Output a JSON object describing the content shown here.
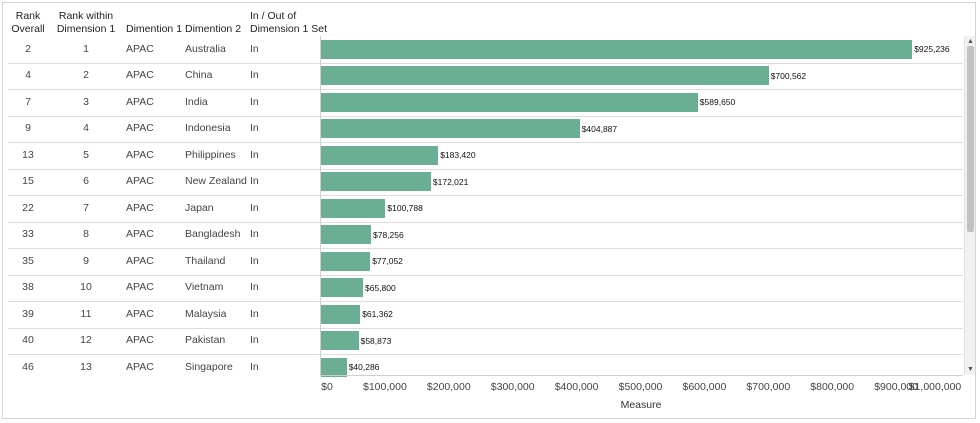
{
  "headers": {
    "rank_overall": [
      "Rank",
      "Overall"
    ],
    "rank_within": [
      "Rank within",
      "Dimension 1"
    ],
    "dimension1": "Dimention 1",
    "dimension2": "Dimention 2",
    "in_out": [
      "In / Out of",
      "Dimension 1 Set"
    ]
  },
  "rows": [
    {
      "rank_overall": "2",
      "rank_within": "1",
      "dim1": "APAC",
      "dim2": "Australia",
      "in_out": "In",
      "label": "$925,236"
    },
    {
      "rank_overall": "4",
      "rank_within": "2",
      "dim1": "APAC",
      "dim2": "China",
      "in_out": "In",
      "label": "$700,562"
    },
    {
      "rank_overall": "7",
      "rank_within": "3",
      "dim1": "APAC",
      "dim2": "India",
      "in_out": "In",
      "label": "$589,650"
    },
    {
      "rank_overall": "9",
      "rank_within": "4",
      "dim1": "APAC",
      "dim2": "Indonesia",
      "in_out": "In",
      "label": "$404,887"
    },
    {
      "rank_overall": "13",
      "rank_within": "5",
      "dim1": "APAC",
      "dim2": "Philippines",
      "in_out": "In",
      "label": "$183,420"
    },
    {
      "rank_overall": "15",
      "rank_within": "6",
      "dim1": "APAC",
      "dim2": "New Zealand",
      "in_out": "In",
      "label": "$172,021"
    },
    {
      "rank_overall": "22",
      "rank_within": "7",
      "dim1": "APAC",
      "dim2": "Japan",
      "in_out": "In",
      "label": "$100,788"
    },
    {
      "rank_overall": "33",
      "rank_within": "8",
      "dim1": "APAC",
      "dim2": "Bangladesh",
      "in_out": "In",
      "label": "$78,256"
    },
    {
      "rank_overall": "35",
      "rank_within": "9",
      "dim1": "APAC",
      "dim2": "Thailand",
      "in_out": "In",
      "label": "$77,052"
    },
    {
      "rank_overall": "38",
      "rank_within": "10",
      "dim1": "APAC",
      "dim2": "Vietnam",
      "in_out": "In",
      "label": "$65,800"
    },
    {
      "rank_overall": "39",
      "rank_within": "11",
      "dim1": "APAC",
      "dim2": "Malaysia",
      "in_out": "In",
      "label": "$61,362"
    },
    {
      "rank_overall": "40",
      "rank_within": "12",
      "dim1": "APAC",
      "dim2": "Pakistan",
      "in_out": "In",
      "label": "$58,873"
    },
    {
      "rank_overall": "46",
      "rank_within": "13",
      "dim1": "APAC",
      "dim2": "Singapore",
      "in_out": "In",
      "label": "$40,286"
    }
  ],
  "chart_data": {
    "type": "bar",
    "orientation": "horizontal",
    "categories": [
      "Australia",
      "China",
      "India",
      "Indonesia",
      "Philippines",
      "New Zealand",
      "Japan",
      "Bangladesh",
      "Thailand",
      "Vietnam",
      "Malaysia",
      "Pakistan",
      "Singapore"
    ],
    "values": [
      925236,
      700562,
      589650,
      404887,
      183420,
      172021,
      100788,
      78256,
      77052,
      65800,
      61362,
      58873,
      40286
    ],
    "xlabel": "Measure",
    "xlim": [
      0,
      1000000
    ],
    "ticks": [
      "$0",
      "$100,000",
      "$200,000",
      "$300,000",
      "$400,000",
      "$500,000",
      "$600,000",
      "$700,000",
      "$800,000",
      "$900,000",
      "$1,000,000"
    ],
    "bar_color": "#6aae93"
  },
  "scrollbar": {
    "up_icon": "triangle-up-icon",
    "down_icon": "triangle-down-icon"
  }
}
